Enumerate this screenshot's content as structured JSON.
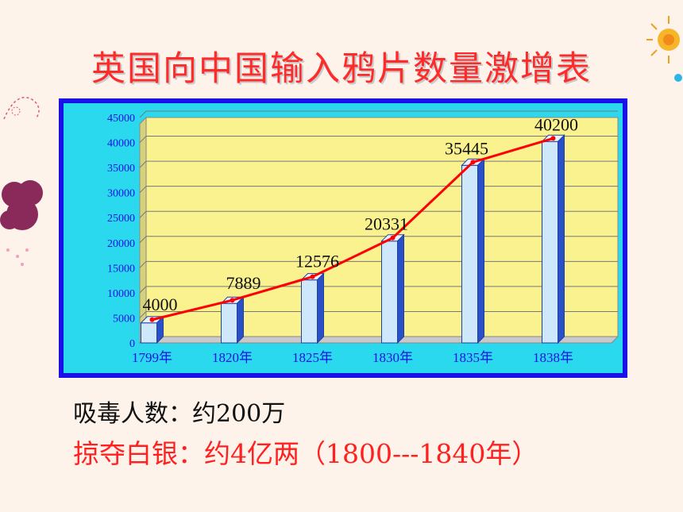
{
  "title": "英国向中国输入鸦片数量激增表",
  "chart_data": {
    "type": "bar",
    "categories": [
      "1799年",
      "1820年",
      "1825年",
      "1830年",
      "1835年",
      "1838年"
    ],
    "values": [
      4000,
      7889,
      12576,
      20331,
      35445,
      40200
    ],
    "data_labels": [
      "4000",
      "7889",
      "12576",
      "20331",
      "35445",
      "40200"
    ],
    "ylim": [
      0,
      45000
    ],
    "y_ticks": [
      0,
      5000,
      10000,
      15000,
      20000,
      25000,
      30000,
      35000,
      40000,
      45000
    ],
    "grid": true,
    "overlay_line": true,
    "colors": {
      "bar": "#cfe7fb",
      "line": "#ff0000",
      "plot_bg": "#f9f28e",
      "frame": "#1a10e8",
      "frame_inner": "#2bd9ef",
      "tick_text": "#1a10e8"
    }
  },
  "notes": {
    "line1": "吸毒人数：约200万",
    "line2": "掠夺白银：约4亿两（1800---1840年）"
  }
}
